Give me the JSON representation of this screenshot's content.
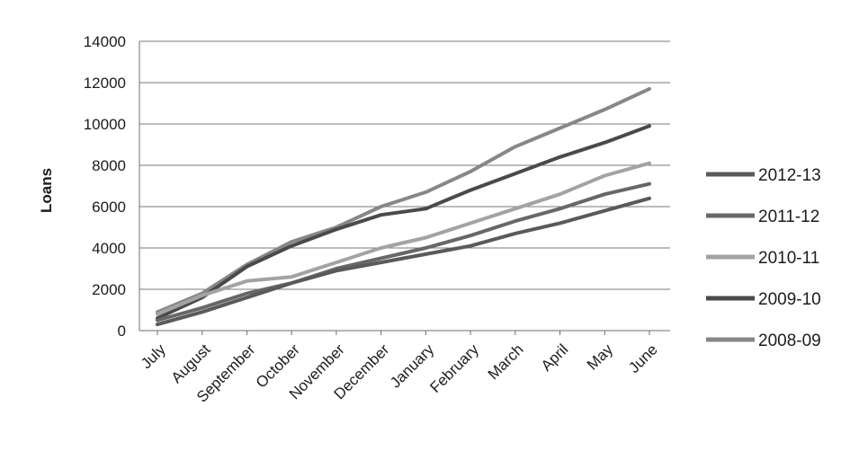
{
  "chart_data": {
    "type": "line",
    "title": "",
    "xlabel": "",
    "ylabel": "Loans",
    "ylim": [
      0,
      14000
    ],
    "yticks": [
      0,
      2000,
      4000,
      6000,
      8000,
      10000,
      12000,
      14000
    ],
    "grid": "horizontal",
    "legend_position": "right",
    "categories": [
      "July",
      "August",
      "September",
      "October",
      "November",
      "December",
      "January",
      "February",
      "March",
      "April",
      "May",
      "June"
    ],
    "series": [
      {
        "name": "2012-13",
        "color": "#5a5a5a",
        "values": [
          300,
          900,
          1600,
          2300,
          2900,
          3300,
          3700,
          4100,
          4700,
          5200,
          5800,
          6400
        ]
      },
      {
        "name": "2011-12",
        "color": "#676767",
        "values": [
          500,
          1100,
          1800,
          2300,
          3000,
          3500,
          4000,
          4600,
          5300,
          5900,
          6600,
          7100
        ]
      },
      {
        "name": "2010-11",
        "color": "#a3a3a3",
        "values": [
          800,
          1700,
          2400,
          2600,
          3300,
          4000,
          4500,
          5200,
          5900,
          6600,
          7500,
          8100
        ]
      },
      {
        "name": "2009-10",
        "color": "#4a4a4a",
        "values": [
          600,
          1600,
          3100,
          4100,
          4900,
          5600,
          5900,
          6800,
          7600,
          8400,
          9100,
          9900
        ]
      },
      {
        "name": "2008-09",
        "color": "#878787",
        "values": [
          900,
          1800,
          3200,
          4300,
          5000,
          6000,
          6700,
          7700,
          8900,
          9800,
          10700,
          11700
        ]
      }
    ]
  }
}
